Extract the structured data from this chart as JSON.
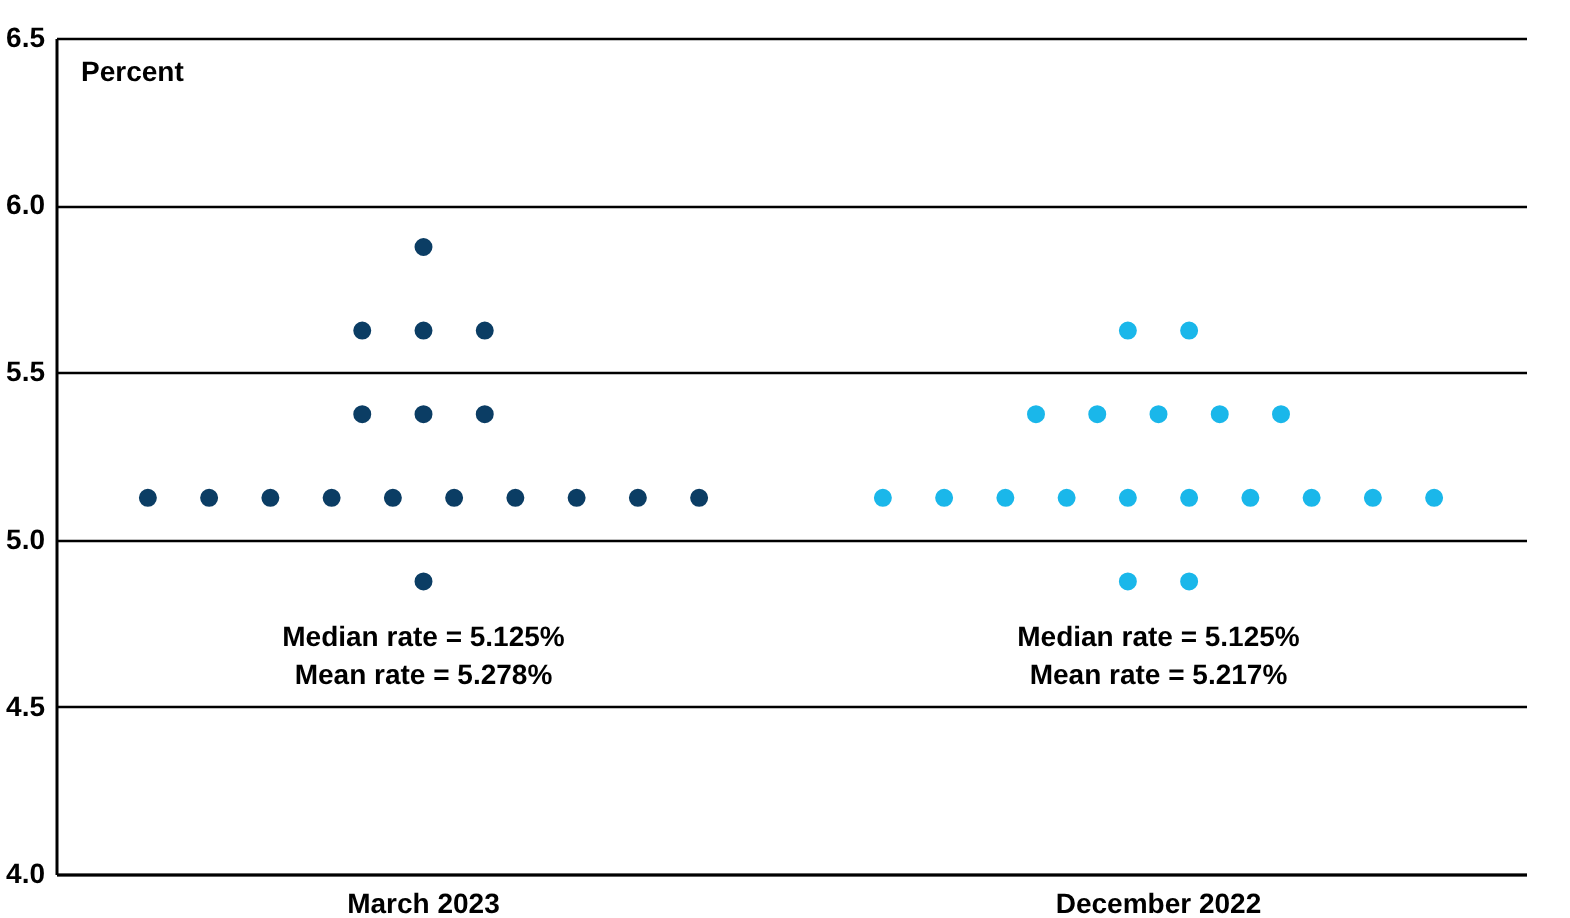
{
  "chart_data": {
    "type": "scatter",
    "ylabel": "Percent",
    "categories": [
      "March 2023",
      "December 2022"
    ],
    "series": [
      {
        "color": "#0b3d64",
        "x": [
          "March 2023",
          "March 2023",
          "March 2023",
          "March 2023",
          "March 2023",
          "March 2023",
          "March 2023",
          "March 2023",
          "March 2023",
          "March 2023",
          "March 2023",
          "March 2023",
          "March 2023",
          "March 2023",
          "March 2023",
          "March 2023",
          "March 2023",
          "March 2023"
        ],
        "values": [
          5.875,
          5.625,
          5.625,
          5.625,
          5.375,
          5.375,
          5.375,
          5.125,
          5.125,
          5.125,
          5.125,
          5.125,
          5.125,
          5.125,
          5.125,
          5.125,
          5.125,
          4.875
        ]
      },
      {
        "color": "#1ab7ea",
        "x": [
          "December 2022",
          "December 2022",
          "December 2022",
          "December 2022",
          "December 2022",
          "December 2022",
          "December 2022",
          "December 2022",
          "December 2022",
          "December 2022",
          "December 2022",
          "December 2022",
          "December 2022",
          "December 2022",
          "December 2022",
          "December 2022",
          "December 2022",
          "December 2022",
          "December 2022"
        ],
        "values": [
          5.625,
          5.625,
          5.375,
          5.375,
          5.375,
          5.375,
          5.375,
          5.125,
          5.125,
          5.125,
          5.125,
          5.125,
          5.125,
          5.125,
          5.125,
          5.125,
          5.125,
          4.875,
          4.875
        ]
      }
    ],
    "annotations": [
      "Median rate = 5.125%",
      "Mean rate = 5.278%",
      "Median rate = 5.125%",
      "Mean rate = 5.217%"
    ],
    "ylim": [
      4.0,
      6.5
    ],
    "yticks": [
      {
        "value": 4,
        "label": "4.0"
      },
      4.5,
      {
        "value": 5,
        "label": "5.0"
      },
      5.5,
      {
        "value": 6,
        "label": "6.0"
      },
      6.5
    ],
    "grid": "y",
    "marker": "circle",
    "legend": false
  }
}
